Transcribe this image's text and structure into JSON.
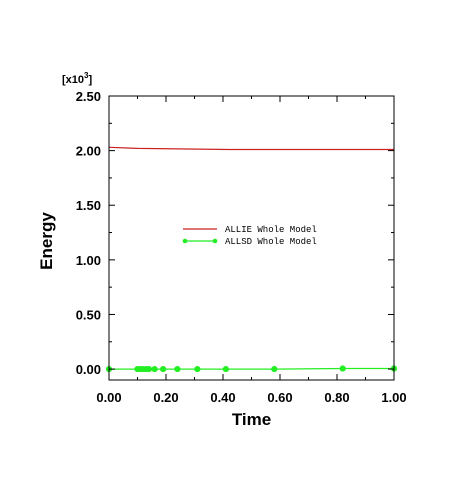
{
  "chart_data": {
    "type": "line",
    "xlabel": "Time",
    "ylabel": "Energy",
    "y_multiplier": {
      "base": "[x10",
      "exp": "3",
      "close": "]"
    },
    "xlim": [
      0.0,
      1.0
    ],
    "ylim": [
      -0.1,
      2.5
    ],
    "x_ticks": [
      "0.00",
      "0.20",
      "0.40",
      "0.60",
      "0.80",
      "1.00"
    ],
    "y_ticks": [
      "0.00",
      "0.50",
      "1.00",
      "1.50",
      "2.00",
      "2.50"
    ],
    "legend_position": "center",
    "series": [
      {
        "name": "ALLIE Whole Model",
        "color": "#cc2222",
        "marker": "none",
        "x": [
          0.0,
          0.1,
          0.42,
          1.0
        ],
        "y": [
          2.03,
          2.02,
          2.01,
          2.01
        ]
      },
      {
        "name": "ALLSD Whole Model",
        "color": "#22ee22",
        "marker": "circle",
        "x": [
          0.0,
          0.1,
          0.11,
          0.12,
          0.13,
          0.14,
          0.16,
          0.19,
          0.24,
          0.31,
          0.41,
          0.58,
          0.82,
          1.0
        ],
        "y": [
          0.0,
          0.0,
          0.0,
          0.0,
          0.0,
          0.0,
          0.0,
          0.0,
          0.0,
          0.0,
          0.0,
          0.0,
          0.005,
          0.005
        ]
      }
    ]
  }
}
